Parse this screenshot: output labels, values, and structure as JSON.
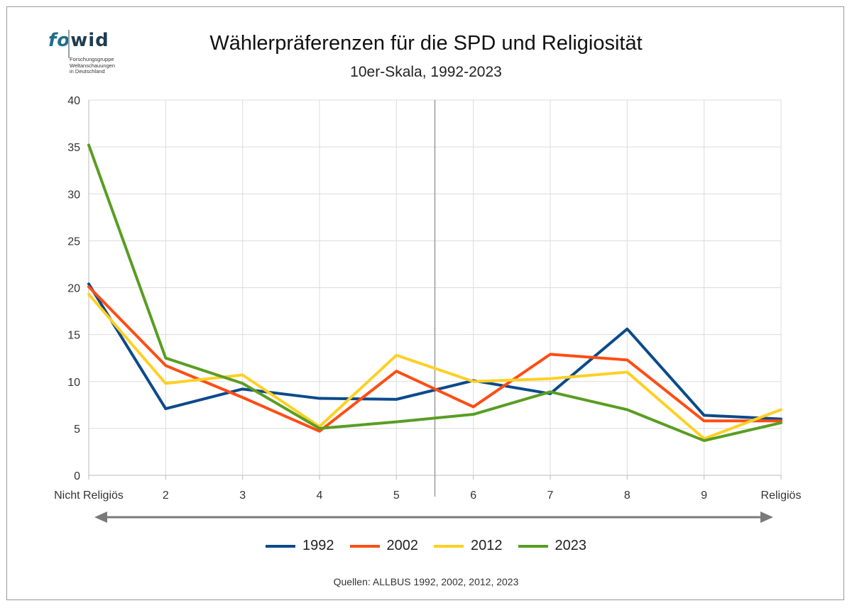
{
  "header": {
    "title": "Wählerpräferenzen für die SPD und Religiosität",
    "subtitle": "10er-Skala, 1992-2023"
  },
  "logo": {
    "fo": "fo",
    "wid": "wid",
    "sub_line1": "Forschungsgruppe",
    "sub_line2": "Weltanschauungen",
    "sub_line3": "in Deutschland"
  },
  "footer": {
    "source": "Quellen: ALLBUS 1992, 2002, 2012, 2023"
  },
  "chart_data": {
    "type": "line",
    "title": "Wählerpräferenzen für die SPD und Religiosität",
    "subtitle": "10er-Skala, 1992-2023",
    "categories": [
      "Nicht Religiös",
      "2",
      "3",
      "4",
      "5",
      "6",
      "7",
      "8",
      "9",
      "Religiös"
    ],
    "y_ticks": [
      "0",
      "5",
      "10",
      "15",
      "20",
      "25",
      "30",
      "35",
      "40"
    ],
    "ylim": [
      0,
      40
    ],
    "grid": true,
    "legend_position": "bottom",
    "divider_between": [
      "5",
      "6"
    ],
    "arrow": "double-headed, under x-axis",
    "series": [
      {
        "name": "1992",
        "color": "#0b4a8b",
        "values": [
          20.4,
          7.1,
          9.2,
          8.2,
          8.1,
          10.1,
          8.7,
          15.6,
          6.4,
          6.0
        ]
      },
      {
        "name": "2002",
        "color": "#ff4d14",
        "values": [
          20.1,
          11.7,
          8.3,
          4.7,
          11.1,
          7.3,
          12.9,
          12.3,
          5.8,
          5.8
        ]
      },
      {
        "name": "2012",
        "color": "#ffd024",
        "values": [
          19.3,
          9.8,
          10.7,
          5.2,
          12.8,
          10.0,
          10.3,
          11.0,
          3.9,
          7.0
        ]
      },
      {
        "name": "2023",
        "color": "#5a9d22",
        "values": [
          35.2,
          12.5,
          9.8,
          5.0,
          5.7,
          6.5,
          8.9,
          7.0,
          3.7,
          5.6
        ]
      }
    ]
  }
}
